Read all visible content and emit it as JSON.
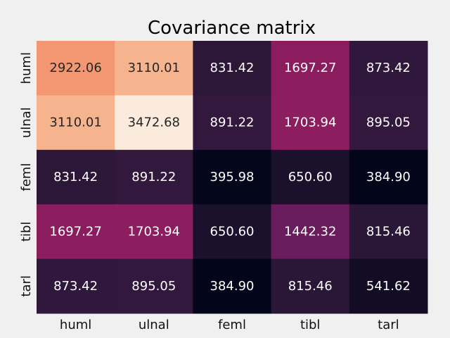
{
  "chart_data": {
    "type": "heatmap",
    "title": "Covariance matrix",
    "xlabel": "",
    "ylabel": "",
    "x_categories": [
      "huml",
      "ulnal",
      "feml",
      "tibl",
      "tarl"
    ],
    "y_categories": [
      "huml",
      "ulnal",
      "feml",
      "tibl",
      "tarl"
    ],
    "values": [
      [
        2922.06,
        3110.01,
        831.42,
        1697.27,
        873.42
      ],
      [
        3110.01,
        3472.68,
        891.22,
        1703.94,
        895.05
      ],
      [
        831.42,
        891.22,
        395.98,
        650.6,
        384.9
      ],
      [
        1697.27,
        1703.94,
        650.6,
        1442.32,
        815.46
      ],
      [
        873.42,
        895.05,
        384.9,
        815.46,
        541.62
      ]
    ],
    "value_format": "2 decimals",
    "colormap": "rocket",
    "color_range": [
      384.9,
      3472.68
    ],
    "colorbar": false,
    "grid": false
  },
  "colors": {
    "background": "#f0f0f0",
    "label_dark": "#262626",
    "label_light": "#ffffff"
  }
}
